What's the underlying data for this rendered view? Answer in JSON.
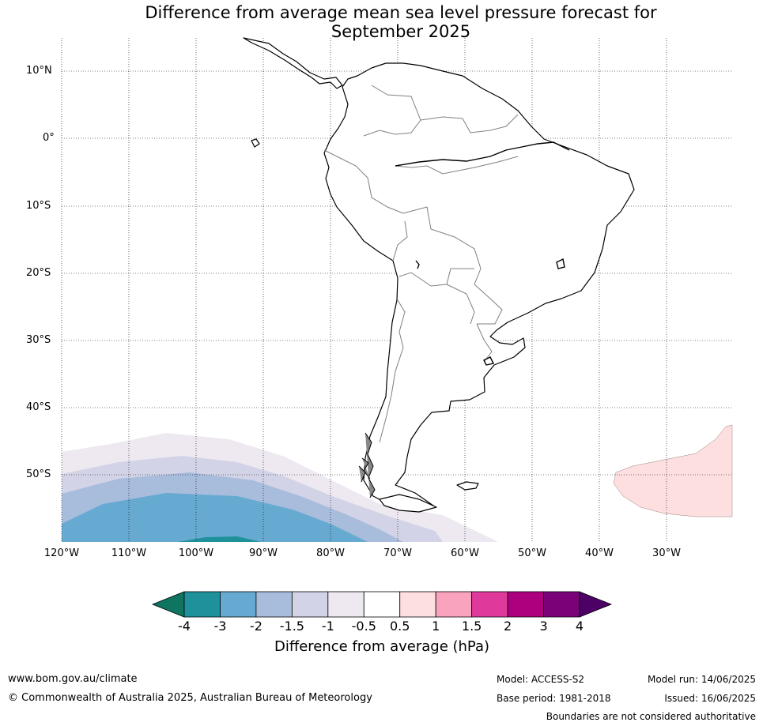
{
  "header": {
    "title_line1": "Difference from average mean sea level pressure forecast for",
    "title_line2": "September 2025"
  },
  "map": {
    "lat_labels": [
      "10°N",
      "0°",
      "10°S",
      "20°S",
      "30°S",
      "40°S",
      "50°S"
    ],
    "lon_labels": [
      "120°W",
      "110°W",
      "100°W",
      "90°W",
      "80°W",
      "70°W",
      "60°W",
      "50°W",
      "40°W",
      "30°W"
    ],
    "colors": {
      "coast": "#000000",
      "borders": "#808080",
      "grid": "#000000",
      "land": "#ffffff"
    }
  },
  "colorbar": {
    "label": "Difference from average (hPa)",
    "ticks": [
      "-4",
      "-3",
      "-2",
      "-1.5",
      "-1",
      "-0.5",
      "0.5",
      "1",
      "1.5",
      "2",
      "3",
      "4"
    ],
    "colors": [
      "#0d7560",
      "#1f919b",
      "#66aad1",
      "#a8bcdc",
      "#d3d3e7",
      "#eee9f0",
      "#ffffff",
      "#fddfdf",
      "#f9a3be",
      "#e0399c",
      "#ad007f",
      "#7a0177",
      "#4d0066"
    ]
  },
  "footer": {
    "website": "www.bom.gov.au/climate",
    "copyright": "© Commonwealth of Australia 2025, Australian Bureau of Meteorology",
    "model": "Model: ACCESS-S2",
    "base_period": "Base period: 1981-2018",
    "model_run": "Model run: 14/06/2025",
    "issued": "Issued: 16/06/2025",
    "disclaimer": "Boundaries are not considered authoritative"
  }
}
